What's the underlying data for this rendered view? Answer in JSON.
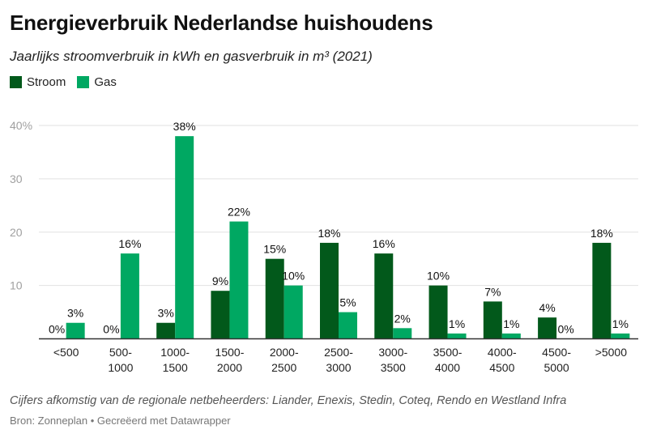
{
  "title": "Energieverbruik Nederlandse huishoudens",
  "subtitle": "Jaarlijks stroomverbruik in kWh en gasverbruik in m³ (2021)",
  "note": "Cijfers afkomstig van de regionale netbeheerders: Liander, Enexis, Stedin, Coteq, Rendo en Westland Infra",
  "source": "Bron: Zonneplan • Gecreëerd met Datawrapper",
  "colors": {
    "stroom": "#02591b",
    "gas": "#00a862",
    "grid": "#e2e2e2",
    "axis": "#333333",
    "ytick": "#a0a0a0"
  },
  "chart_data": {
    "type": "bar",
    "categories": [
      "<500",
      "500-\n1000",
      "1000-\n1500",
      "1500-\n2000",
      "2000-\n2500",
      "2500-\n3000",
      "3000-\n3500",
      "3500-\n4000",
      "4000-\n4500",
      "4500-\n5000",
      ">5000"
    ],
    "series": [
      {
        "name": "Stroom",
        "values": [
          0,
          0,
          3,
          9,
          15,
          18,
          16,
          10,
          7,
          4,
          18
        ],
        "labels": [
          "0%",
          "0%",
          "3%",
          "9%",
          "15%",
          "18%",
          "16%",
          "10%",
          "7%",
          "4%",
          "18%"
        ]
      },
      {
        "name": "Gas",
        "values": [
          3,
          16,
          38,
          22,
          10,
          5,
          2,
          1,
          1,
          0,
          1
        ],
        "labels": [
          "3%",
          "16%",
          "38%",
          "22%",
          "10%",
          "5%",
          "2%",
          "1%",
          "1%",
          "0%",
          "1%"
        ]
      }
    ],
    "yticks": [
      "10",
      "20",
      "30",
      "40%"
    ],
    "ytick_values": [
      10,
      20,
      30,
      40
    ],
    "ylim": [
      0,
      40
    ],
    "grid": true,
    "legend": "top-left"
  }
}
